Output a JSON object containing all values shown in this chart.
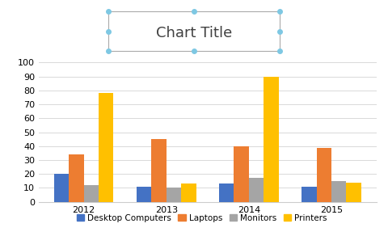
{
  "title": "Chart Title",
  "categories": [
    "2012",
    "2013",
    "2014",
    "2015"
  ],
  "series": {
    "Desktop Computers": [
      20,
      11,
      13,
      11
    ],
    "Laptops": [
      34,
      45,
      40,
      39
    ],
    "Monitors": [
      12,
      10,
      17,
      15
    ],
    "Printers": [
      78,
      13,
      90,
      14
    ]
  },
  "colors": {
    "Desktop Computers": "#4472C4",
    "Laptops": "#ED7D31",
    "Monitors": "#A5A5A5",
    "Printers": "#FFC000"
  },
  "ylim": [
    0,
    100
  ],
  "yticks": [
    0,
    10,
    20,
    30,
    40,
    50,
    60,
    70,
    80,
    90,
    100
  ],
  "bar_width": 0.18,
  "background_color": "#FFFFFF",
  "grid_color": "#D9D9D9",
  "title_fontsize": 13,
  "axis_fontsize": 8,
  "legend_fontsize": 7.5,
  "title_box_color": "#808080"
}
